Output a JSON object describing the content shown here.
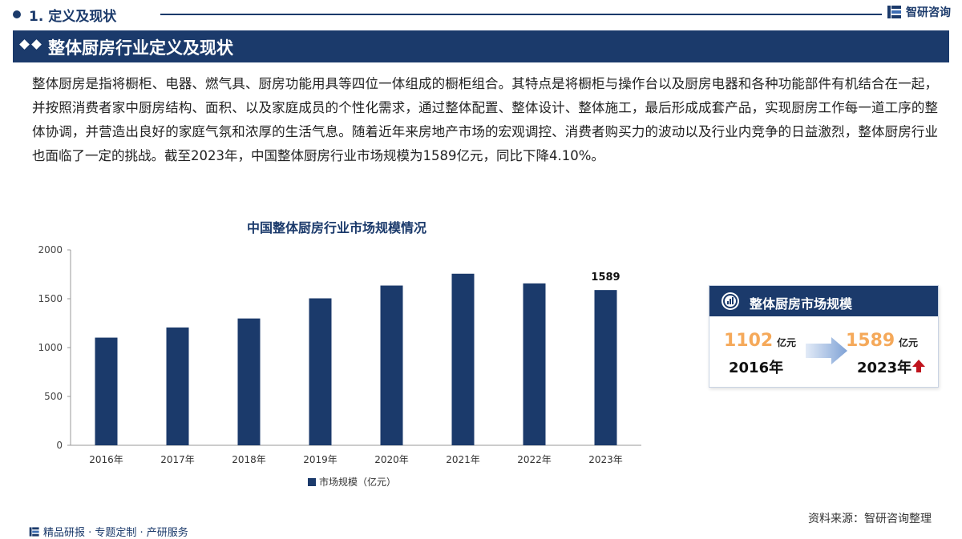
{
  "header": {
    "section": "1. 定义及现状",
    "brand": "智研咨询"
  },
  "title": "整体厨房行业定义及现状",
  "intro": "整体厨房是指将橱柜、电器、燃气具、厨房功能用具等四位一体组成的橱柜组合。其特点是将橱柜与操作台以及厨房电器和各种功能部件有机结合在一起，并按照消费者家中厨房结构、面积、以及家庭成员的个性化需求，通过整体配置、整体设计、整体施工，最后形成成套产品，实现厨房工作每一道工序的整体协调，并营造出良好的家庭气氛和浓厚的生活气息。随着近年来房地产市场的宏观调控、消费者购买力的波动以及行业内竞争的日益激烈，整体厨房行业也面临了一定的挑战。截至2023年，中国整体厨房行业市场规模为1589亿元，同比下降4.10%。",
  "chart_data": {
    "type": "bar",
    "title": "中国整体厨房行业市场规模情况",
    "categories": [
      "2016年",
      "2017年",
      "2018年",
      "2019年",
      "2020年",
      "2021年",
      "2022年",
      "2023年"
    ],
    "series": [
      {
        "name": "市场规模（亿元）",
        "values": [
          1102,
          1206,
          1298,
          1504,
          1635,
          1756,
          1657,
          1589
        ]
      }
    ],
    "data_labels": {
      "2023年": "1589"
    },
    "ylim": [
      0,
      2000
    ],
    "yticks": [
      0,
      500,
      1000,
      1500,
      2000
    ],
    "xlabel": "",
    "ylabel": "",
    "grid": false,
    "legend": "bottom",
    "bar_color": "#1b3a6b"
  },
  "card": {
    "title": "整体厨房市场规模",
    "start_value": "1102",
    "start_unit": "亿元",
    "start_year": "2016年",
    "end_value": "1589",
    "end_unit": "亿元",
    "end_year": "2023年",
    "value_color": "#f5a95a",
    "trend_icon": "up-arrow-icon",
    "trend_color": "#c0141d"
  },
  "footer": {
    "source": "资料来源：智研咨询整理",
    "tagline": "精品研报 · 专题定制 · 产研服务"
  },
  "colors": {
    "primary": "#1b3a6b",
    "accent": "#f5a95a"
  }
}
